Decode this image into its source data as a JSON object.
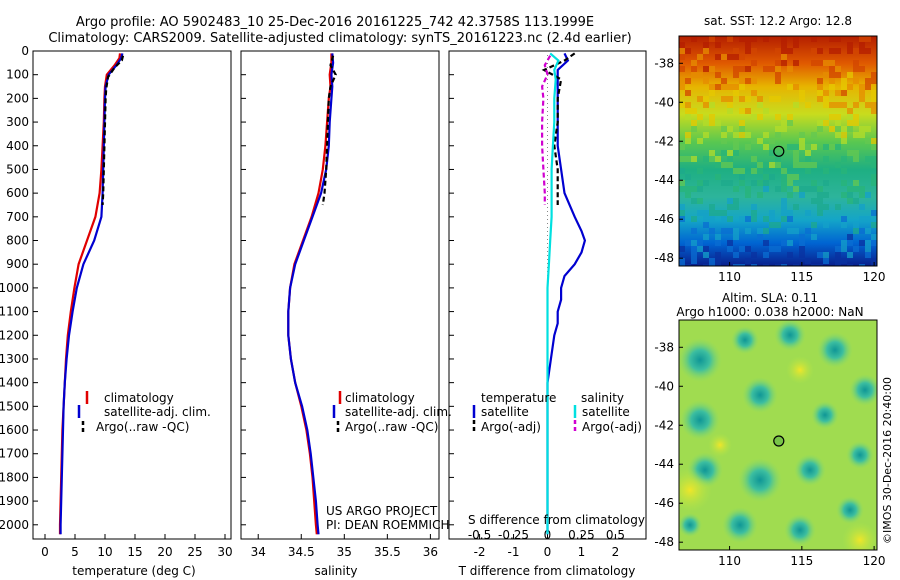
{
  "title_line1": "Argo profile: AO 5902483_10 25-Dec-2016 20161225_742 42.3758S 113.1999E",
  "title_line2": "Climatology: CARS2009. Satellite-adjusted climatology: synTS_20161223.nc (2.4d earlier)",
  "sst_title": "sat. SST: 12.2 Argo: 12.8",
  "sla_title1": "Altim. SLA: 0.11",
  "sla_title2": "Argo h1000: 0.038 h2000: NaN",
  "watermark": "©IMOS 30-Dec-2016 20:40:00",
  "project_line1": "US ARGO PROJECT",
  "project_line2": "PI: DEAN ROEMMICH",
  "colors": {
    "climatology": "#e00000",
    "satellite": "#0000d0",
    "argo": "#000000",
    "satellite_salinity": "#00e0e0",
    "argo_salinity": "#d000d0"
  },
  "legend": {
    "climatology": "climatology",
    "satellite_adj": "satellite-adj. clim.",
    "argo_raw": "Argo(..raw -QC)",
    "temperature_header": "temperature",
    "salinity_header": "salinity",
    "satellite": "satellite",
    "argo_adj": "Argo(-adj)"
  },
  "chart_data": [
    {
      "type": "line",
      "name": "temperature profile",
      "xlabel": "temperature (deg C)",
      "ylabel": "",
      "xlim": [
        -2,
        31
      ],
      "ylim": [
        2060,
        0
      ],
      "xticks": [
        0,
        5,
        10,
        15,
        20,
        25,
        30
      ],
      "yticks": [
        0,
        100,
        200,
        300,
        400,
        500,
        600,
        700,
        800,
        900,
        1000,
        1100,
        1200,
        1300,
        1400,
        1500,
        1600,
        1700,
        1800,
        1900,
        2000
      ],
      "series": [
        {
          "name": "climatology",
          "depth": [
            10,
            30,
            60,
            100,
            150,
            200,
            300,
            400,
            500,
            600,
            700,
            800,
            900,
            1000,
            1100,
            1200,
            1300,
            1400,
            1500,
            1600,
            1700,
            1800,
            1900,
            2000,
            2040
          ],
          "values": [
            12.5,
            12.4,
            11.6,
            10.3,
            10.0,
            9.9,
            9.8,
            9.6,
            9.4,
            9.1,
            8.4,
            7.0,
            5.6,
            4.9,
            4.3,
            3.8,
            3.5,
            3.3,
            3.1,
            2.9,
            2.8,
            2.7,
            2.6,
            2.5,
            2.5
          ]
        },
        {
          "name": "satellite-adj. clim.",
          "depth": [
            10,
            30,
            60,
            100,
            150,
            200,
            300,
            400,
            500,
            600,
            700,
            800,
            900,
            1000,
            1100,
            1200,
            1300,
            1400,
            1500,
            1600,
            1700,
            1800,
            1900,
            2000,
            2040
          ],
          "values": [
            12.9,
            12.7,
            11.9,
            10.6,
            10.1,
            10.0,
            9.9,
            9.8,
            9.7,
            9.6,
            9.4,
            8.2,
            6.4,
            5.3,
            4.6,
            4.0,
            3.6,
            3.3,
            3.1,
            3.0,
            2.9,
            2.8,
            2.7,
            2.6,
            2.6
          ]
        },
        {
          "name": "Argo(..raw -QC)",
          "depth": [
            20,
            40,
            70,
            110,
            160,
            200,
            300,
            400,
            500,
            600,
            650
          ],
          "values": [
            13.0,
            12.8,
            11.6,
            10.5,
            10.2,
            10.1,
            10.0,
            9.9,
            9.8,
            9.7,
            9.6
          ]
        }
      ]
    },
    {
      "type": "line",
      "name": "salinity profile",
      "xlabel": "salinity",
      "ylabel": "",
      "xlim": [
        33.8,
        36.1
      ],
      "ylim": [
        2060,
        0
      ],
      "xticks": [
        34,
        34.5,
        35,
        35.5,
        36
      ],
      "series": [
        {
          "name": "climatology",
          "depth": [
            10,
            50,
            100,
            150,
            200,
            300,
            400,
            500,
            600,
            700,
            800,
            900,
            1000,
            1100,
            1200,
            1300,
            1400,
            1500,
            1600,
            1700,
            1800,
            1900,
            2000,
            2040
          ],
          "values": [
            34.85,
            34.85,
            34.83,
            34.84,
            34.82,
            34.8,
            34.78,
            34.75,
            34.7,
            34.62,
            34.52,
            34.42,
            34.37,
            34.35,
            34.35,
            34.38,
            34.43,
            34.5,
            34.56,
            34.6,
            34.63,
            34.65,
            34.67,
            34.68
          ]
        },
        {
          "name": "satellite-adj. clim.",
          "depth": [
            10,
            50,
            100,
            150,
            200,
            300,
            400,
            500,
            600,
            700,
            800,
            900,
            1000,
            1100,
            1200,
            1300,
            1400,
            1500,
            1600,
            1700,
            1800,
            1900,
            2000,
            2040
          ],
          "values": [
            34.86,
            34.87,
            34.85,
            34.86,
            34.85,
            34.83,
            34.82,
            34.79,
            34.73,
            34.63,
            34.53,
            34.43,
            34.37,
            34.35,
            34.35,
            34.38,
            34.43,
            34.51,
            34.57,
            34.61,
            34.64,
            34.67,
            34.69,
            34.7
          ]
        },
        {
          "name": "Argo(..raw -QC)",
          "depth": [
            20,
            60,
            100,
            150,
            200,
            300,
            400,
            500,
            600,
            650
          ],
          "values": [
            34.87,
            34.84,
            34.9,
            34.84,
            34.82,
            34.81,
            34.8,
            34.79,
            34.77,
            34.75
          ]
        }
      ]
    },
    {
      "type": "line",
      "name": "difference from climatology",
      "xlabel": "T difference from climatology",
      "xlabel2": "S difference from climatology",
      "xlim": [
        -2.9,
        2.9
      ],
      "ylim": [
        2060,
        0
      ],
      "xticks": [
        -2,
        -1,
        0,
        1,
        2
      ],
      "xticks_salinity": [
        -0.5,
        -0.25,
        0,
        0.25,
        0.5
      ],
      "series": [
        {
          "name": "temperature satellite",
          "depth": [
            10,
            40,
            80,
            120,
            200,
            300,
            400,
            500,
            600,
            700,
            760,
            800,
            850,
            900,
            950,
            1000,
            1050,
            1100,
            1150,
            1200,
            1300,
            1400,
            1500,
            1600,
            1700,
            1800,
            1900,
            2000,
            2040
          ],
          "values": [
            0.5,
            0.6,
            0.3,
            0.3,
            0.3,
            0.3,
            0.3,
            0.4,
            0.5,
            0.8,
            1.0,
            1.1,
            1.0,
            0.8,
            0.5,
            0.4,
            0.4,
            0.3,
            0.3,
            0.2,
            0.1,
            0.0,
            0.0,
            0.0,
            0.0,
            0.0,
            0.0,
            0.0,
            0.0
          ]
        },
        {
          "name": "temperature Argo(-adj)",
          "depth": [
            10,
            40,
            80,
            120,
            200,
            300,
            400,
            500,
            600,
            650
          ],
          "values": [
            0.8,
            0.5,
            -0.1,
            0.4,
            0.3,
            0.3,
            0.2,
            0.3,
            0.3,
            0.3
          ]
        },
        {
          "name": "salinity satellite",
          "depth": [
            10,
            40,
            80,
            120,
            200,
            300,
            400,
            500,
            600,
            700,
            800,
            900,
            1000,
            1100,
            1200,
            1300,
            1400,
            1500,
            1600,
            1700,
            1800,
            1900,
            2000,
            2040
          ],
          "values": [
            0.02,
            0.08,
            0.05,
            0.06,
            0.05,
            0.05,
            0.04,
            0.03,
            0.03,
            0.03,
            0.02,
            0.01,
            0.0,
            0.0,
            0.0,
            0.0,
            0.0,
            0.0,
            0.0,
            0.0,
            0.0,
            0.0,
            0.0,
            0.0
          ]
        },
        {
          "name": "salinity Argo(-adj)",
          "depth": [
            20,
            60,
            100,
            150,
            200,
            300,
            400,
            500,
            600,
            650
          ],
          "values": [
            0.02,
            -0.02,
            0.0,
            -0.04,
            -0.03,
            -0.04,
            -0.04,
            -0.03,
            -0.02,
            -0.02
          ]
        }
      ]
    },
    {
      "type": "heatmap",
      "name": "sat SST map",
      "xticks": [
        110,
        115,
        120
      ],
      "yticks": [
        -38,
        -40,
        -42,
        -44,
        -46,
        -48
      ],
      "xlim": [
        106.5,
        120.2
      ],
      "ylim": [
        -48.4,
        -36.6
      ],
      "argo_position": [
        113.2,
        -42.38
      ]
    },
    {
      "type": "heatmap",
      "name": "altimetry SLA map",
      "xticks": [
        110,
        115,
        120
      ],
      "yticks": [
        -38,
        -40,
        -42,
        -44,
        -46,
        -48
      ],
      "xlim": [
        106.5,
        120.2
      ],
      "ylim": [
        -48.4,
        -36.6
      ],
      "argo_position": [
        113.2,
        -42.38
      ]
    }
  ]
}
